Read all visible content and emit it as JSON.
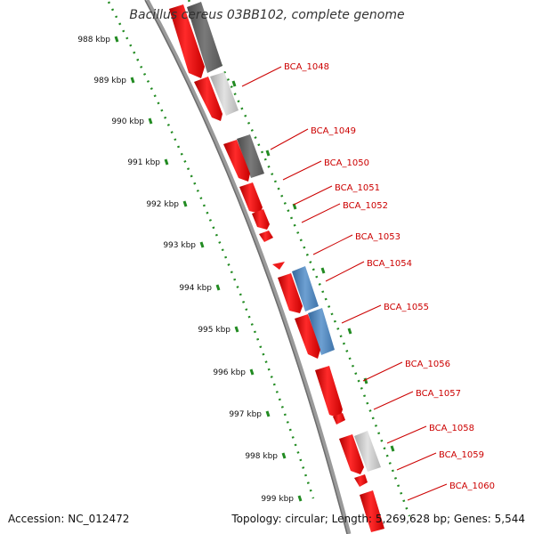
{
  "title": "Bacillus cereus 03BB102, complete genome",
  "footer": {
    "accession": "Accession: NC_012472",
    "summary": "Topology: circular; Length: 5,269,628 bp; Genes: 5,544"
  },
  "colors": {
    "gene_red": "#ee1c1c",
    "gene_dark_gray": "#666666",
    "gene_light_gray": "#c8c8c8",
    "gene_blue": "#4f83b8",
    "backbone_gray": "#808080",
    "tick_green": "#228b22",
    "label_red": "#cc0000"
  },
  "scale": {
    "tick_labels": [
      "988 kbp",
      "989 kbp",
      "990 kbp",
      "991 kbp",
      "992 kbp",
      "993 kbp",
      "994 kbp",
      "995 kbp",
      "996 kbp",
      "997 kbp",
      "998 kbp",
      "999 kbp"
    ]
  },
  "gene_labels": [
    "BCA_1048",
    "BCA_1049",
    "BCA_1050",
    "BCA_1051",
    "BCA_1052",
    "BCA_1053",
    "BCA_1054",
    "BCA_1055",
    "BCA_1056",
    "BCA_1057",
    "BCA_1058",
    "BCA_1059",
    "BCA_1060"
  ]
}
